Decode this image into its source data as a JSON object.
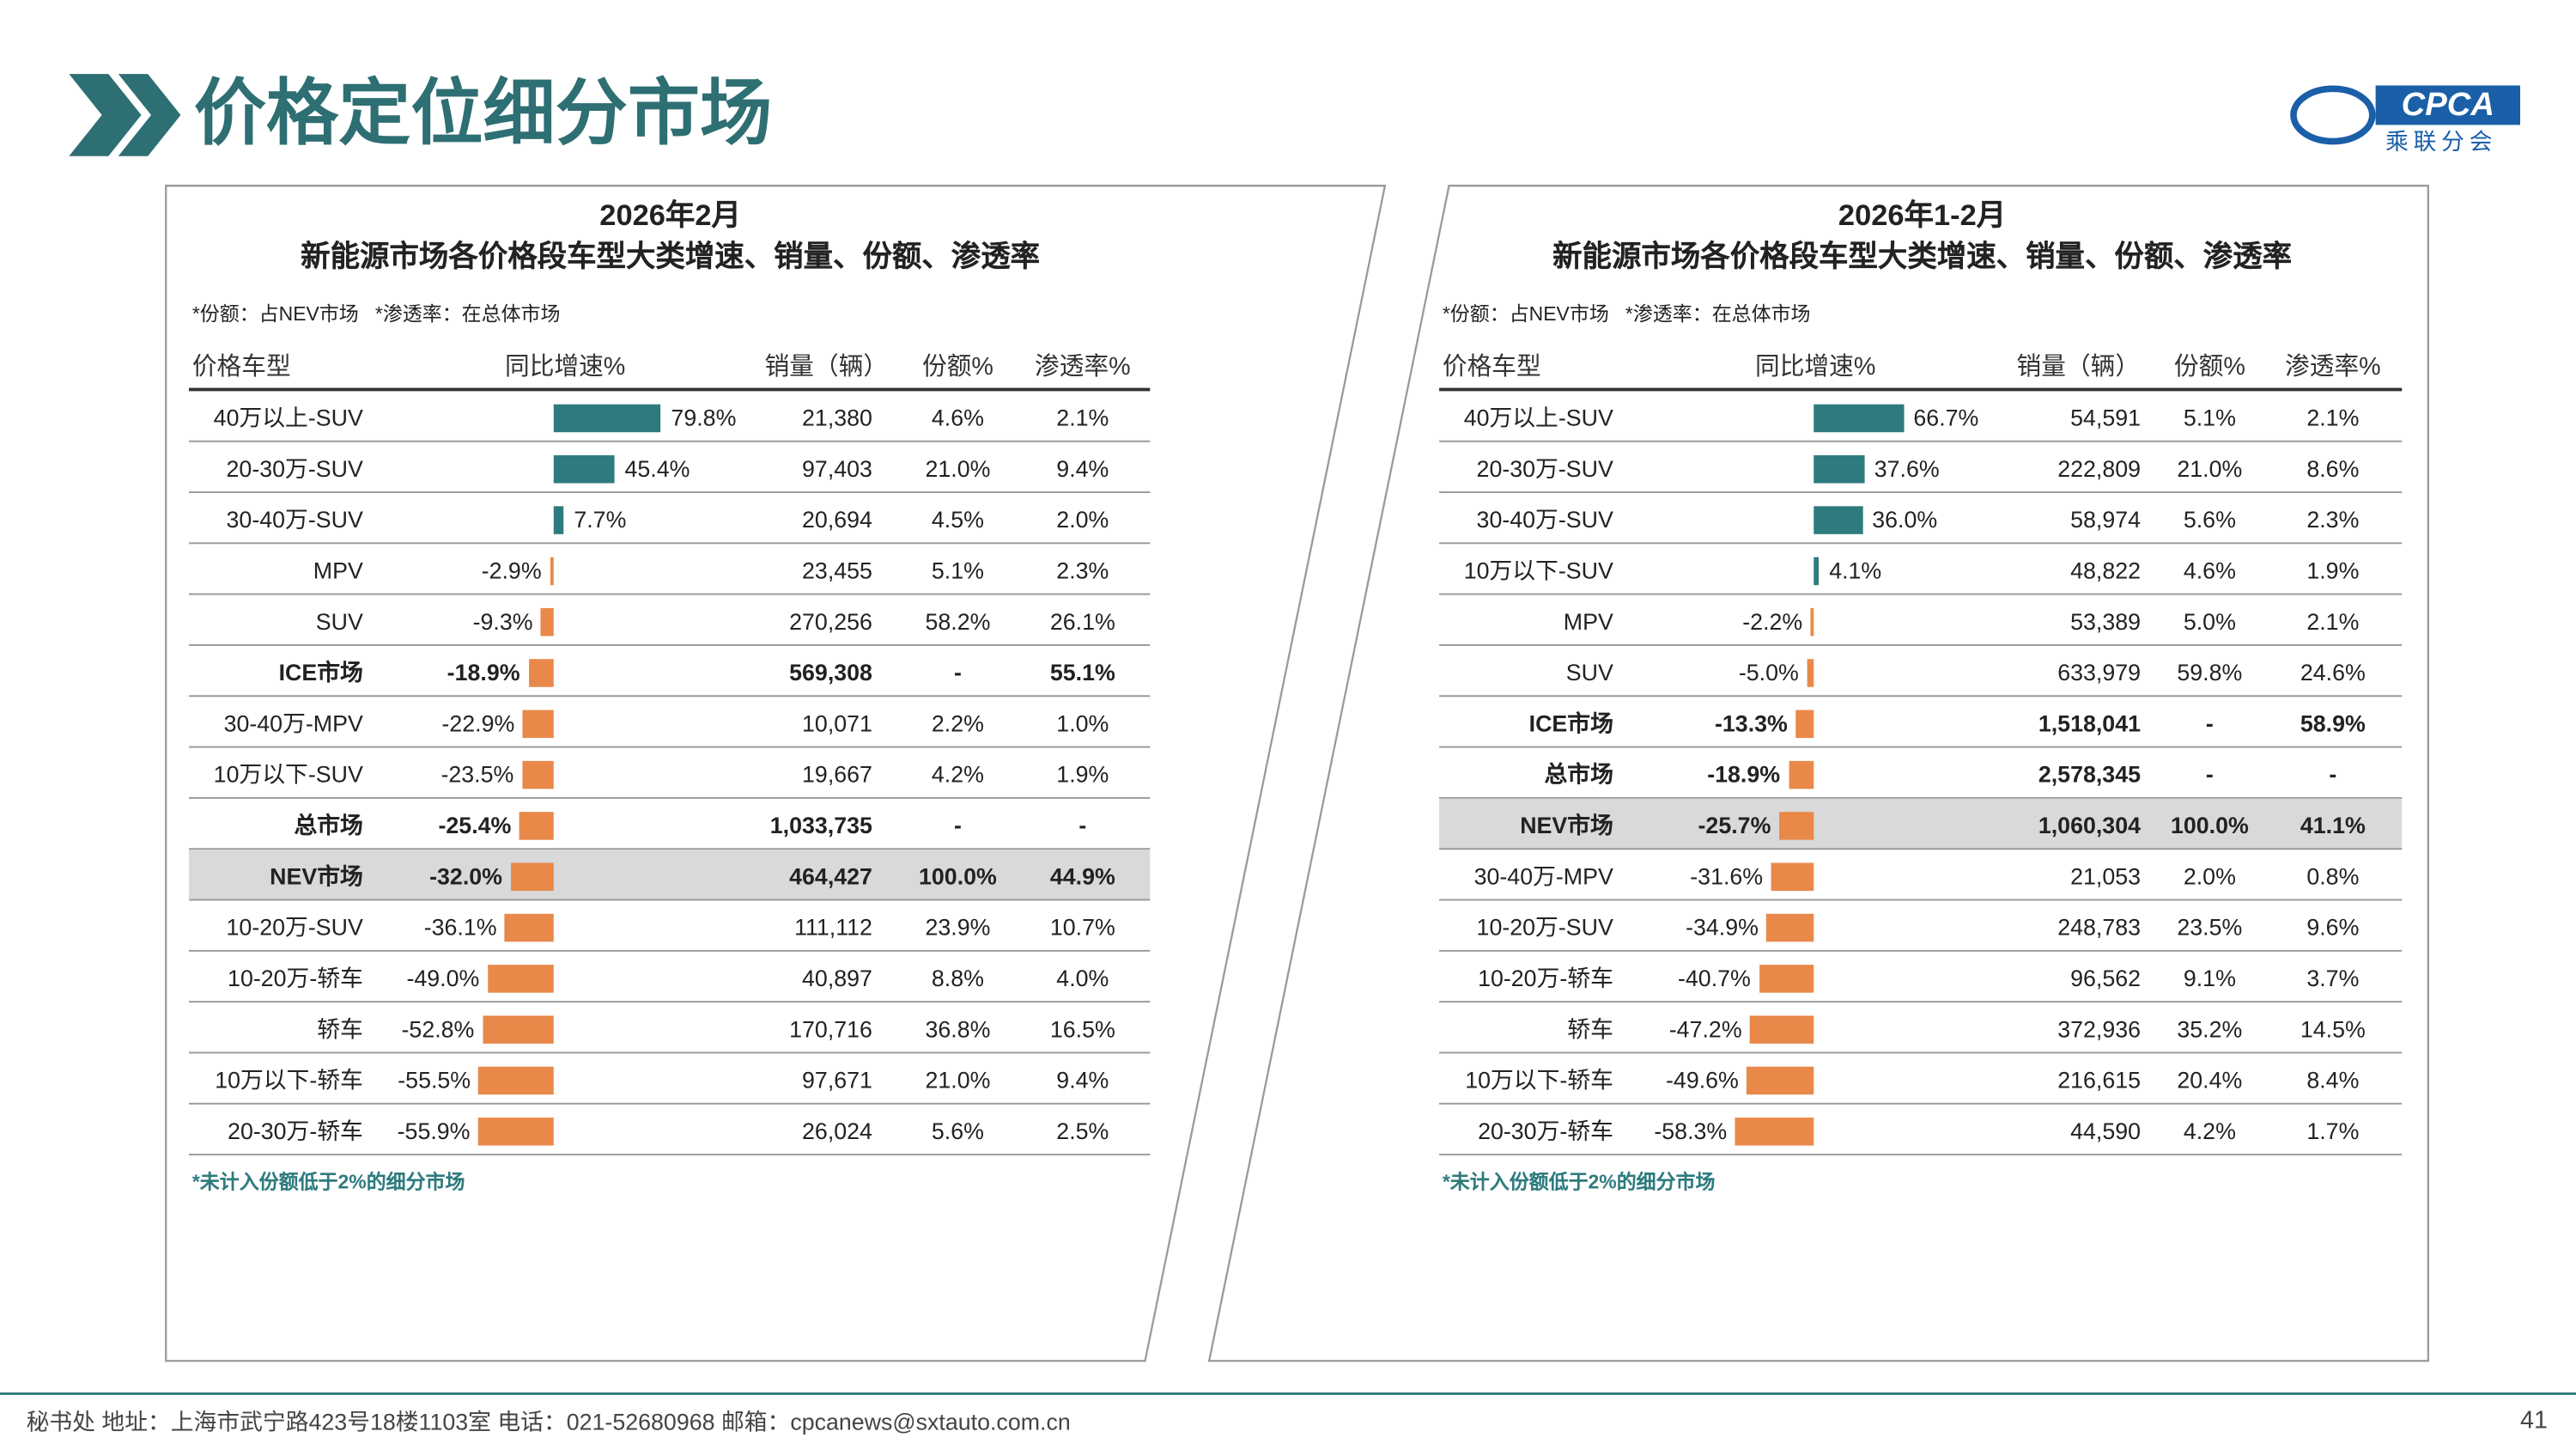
{
  "header": {
    "title": "价格定位细分市场",
    "logo_text": "CPCA",
    "logo_sub": "乘联分会"
  },
  "bar_colors": {
    "positive": "#2e7b7e",
    "negative": "#e8894a"
  },
  "panels": [
    {
      "title": "2026年2月",
      "subtitle": "新能源市场各价格段车型大类增速、销量、份额、渗透率",
      "note": "*份额：占NEV市场   *渗透率：在总体市场",
      "columns": [
        "价格车型",
        "同比增速%",
        "销量（辆）",
        "份额%",
        "渗透率%"
      ],
      "rows": [
        {
          "name": "40万以上-SUV",
          "growth": 79.8,
          "growth_label": "79.8%",
          "sales": "21,380",
          "share": "4.6%",
          "penetration": "2.1%"
        },
        {
          "name": "20-30万-SUV",
          "growth": 45.4,
          "growth_label": "45.4%",
          "sales": "97,403",
          "share": "21.0%",
          "penetration": "9.4%"
        },
        {
          "name": "30-40万-SUV",
          "growth": 7.7,
          "growth_label": "7.7%",
          "sales": "20,694",
          "share": "4.5%",
          "penetration": "2.0%"
        },
        {
          "name": "MPV",
          "growth": -2.9,
          "growth_label": "-2.9%",
          "sales": "23,455",
          "share": "5.1%",
          "penetration": "2.3%"
        },
        {
          "name": "SUV",
          "growth": -9.3,
          "growth_label": "-9.3%",
          "sales": "270,256",
          "share": "58.2%",
          "penetration": "26.1%"
        },
        {
          "name": "ICE市场",
          "growth": -18.9,
          "growth_label": "-18.9%",
          "sales": "569,308",
          "share": "-",
          "penetration": "55.1%",
          "style": "bold"
        },
        {
          "name": "30-40万-MPV",
          "growth": -22.9,
          "growth_label": "-22.9%",
          "sales": "10,071",
          "share": "2.2%",
          "penetration": "1.0%"
        },
        {
          "name": "10万以下-SUV",
          "growth": -23.5,
          "growth_label": "-23.5%",
          "sales": "19,667",
          "share": "4.2%",
          "penetration": "1.9%"
        },
        {
          "name": "总市场",
          "growth": -25.4,
          "growth_label": "-25.4%",
          "sales": "1,033,735",
          "share": "-",
          "penetration": "-",
          "style": "bold"
        },
        {
          "name": "NEV市场",
          "growth": -32.0,
          "growth_label": "-32.0%",
          "sales": "464,427",
          "share": "100.0%",
          "penetration": "44.9%",
          "style": "highlight"
        },
        {
          "name": "10-20万-SUV",
          "growth": -36.1,
          "growth_label": "-36.1%",
          "sales": "111,112",
          "share": "23.9%",
          "penetration": "10.7%"
        },
        {
          "name": "10-20万-轿车",
          "growth": -49.0,
          "growth_label": "-49.0%",
          "sales": "40,897",
          "share": "8.8%",
          "penetration": "4.0%"
        },
        {
          "name": "轿车",
          "growth": -52.8,
          "growth_label": "-52.8%",
          "sales": "170,716",
          "share": "36.8%",
          "penetration": "16.5%"
        },
        {
          "name": "10万以下-轿车",
          "growth": -55.5,
          "growth_label": "-55.5%",
          "sales": "97,671",
          "share": "21.0%",
          "penetration": "9.4%"
        },
        {
          "name": "20-30万-轿车",
          "growth": -55.9,
          "growth_label": "-55.9%",
          "sales": "26,024",
          "share": "5.6%",
          "penetration": "2.5%"
        }
      ],
      "footnote": "*未计入份额低于2%的细分市场"
    },
    {
      "title": "2026年1-2月",
      "subtitle": "新能源市场各价格段车型大类增速、销量、份额、渗透率",
      "note": "*份额：占NEV市场   *渗透率：在总体市场",
      "columns": [
        "价格车型",
        "同比增速%",
        "销量（辆）",
        "份额%",
        "渗透率%"
      ],
      "rows": [
        {
          "name": "40万以上-SUV",
          "growth": 66.7,
          "growth_label": "66.7%",
          "sales": "54,591",
          "share": "5.1%",
          "penetration": "2.1%"
        },
        {
          "name": "20-30万-SUV",
          "growth": 37.6,
          "growth_label": "37.6%",
          "sales": "222,809",
          "share": "21.0%",
          "penetration": "8.6%"
        },
        {
          "name": "30-40万-SUV",
          "growth": 36.0,
          "growth_label": "36.0%",
          "sales": "58,974",
          "share": "5.6%",
          "penetration": "2.3%"
        },
        {
          "name": "10万以下-SUV",
          "growth": 4.1,
          "growth_label": "4.1%",
          "sales": "48,822",
          "share": "4.6%",
          "penetration": "1.9%"
        },
        {
          "name": "MPV",
          "growth": -2.2,
          "growth_label": "-2.2%",
          "sales": "53,389",
          "share": "5.0%",
          "penetration": "2.1%"
        },
        {
          "name": "SUV",
          "growth": -5.0,
          "growth_label": "-5.0%",
          "sales": "633,979",
          "share": "59.8%",
          "penetration": "24.6%"
        },
        {
          "name": "ICE市场",
          "growth": -13.3,
          "growth_label": "-13.3%",
          "sales": "1,518,041",
          "share": "-",
          "penetration": "58.9%",
          "style": "bold"
        },
        {
          "name": "总市场",
          "growth": -18.9,
          "growth_label": "-18.9%",
          "sales": "2,578,345",
          "share": "-",
          "penetration": "-",
          "style": "bold"
        },
        {
          "name": "NEV市场",
          "growth": -25.7,
          "growth_label": "-25.7%",
          "sales": "1,060,304",
          "share": "100.0%",
          "penetration": "41.1%",
          "style": "highlight"
        },
        {
          "name": "30-40万-MPV",
          "growth": -31.6,
          "growth_label": "-31.6%",
          "sales": "21,053",
          "share": "2.0%",
          "penetration": "0.8%"
        },
        {
          "name": "10-20万-SUV",
          "growth": -34.9,
          "growth_label": "-34.9%",
          "sales": "248,783",
          "share": "23.5%",
          "penetration": "9.6%"
        },
        {
          "name": "10-20万-轿车",
          "growth": -40.7,
          "growth_label": "-40.7%",
          "sales": "96,562",
          "share": "9.1%",
          "penetration": "3.7%"
        },
        {
          "name": "轿车",
          "growth": -47.2,
          "growth_label": "-47.2%",
          "sales": "372,936",
          "share": "35.2%",
          "penetration": "14.5%"
        },
        {
          "name": "10万以下-轿车",
          "growth": -49.6,
          "growth_label": "-49.6%",
          "sales": "216,615",
          "share": "20.4%",
          "penetration": "8.4%"
        },
        {
          "name": "20-30万-轿车",
          "growth": -58.3,
          "growth_label": "-58.3%",
          "sales": "44,590",
          "share": "4.2%",
          "penetration": "1.7%"
        }
      ],
      "footnote": "*未计入份额低于2%的细分市场"
    }
  ],
  "footer": {
    "address": "秘书处   地址：上海市武宁路423号18楼1103室   电话：021-52680968   邮箱：cpcanews@sxtauto.com.cn",
    "page": "41"
  }
}
